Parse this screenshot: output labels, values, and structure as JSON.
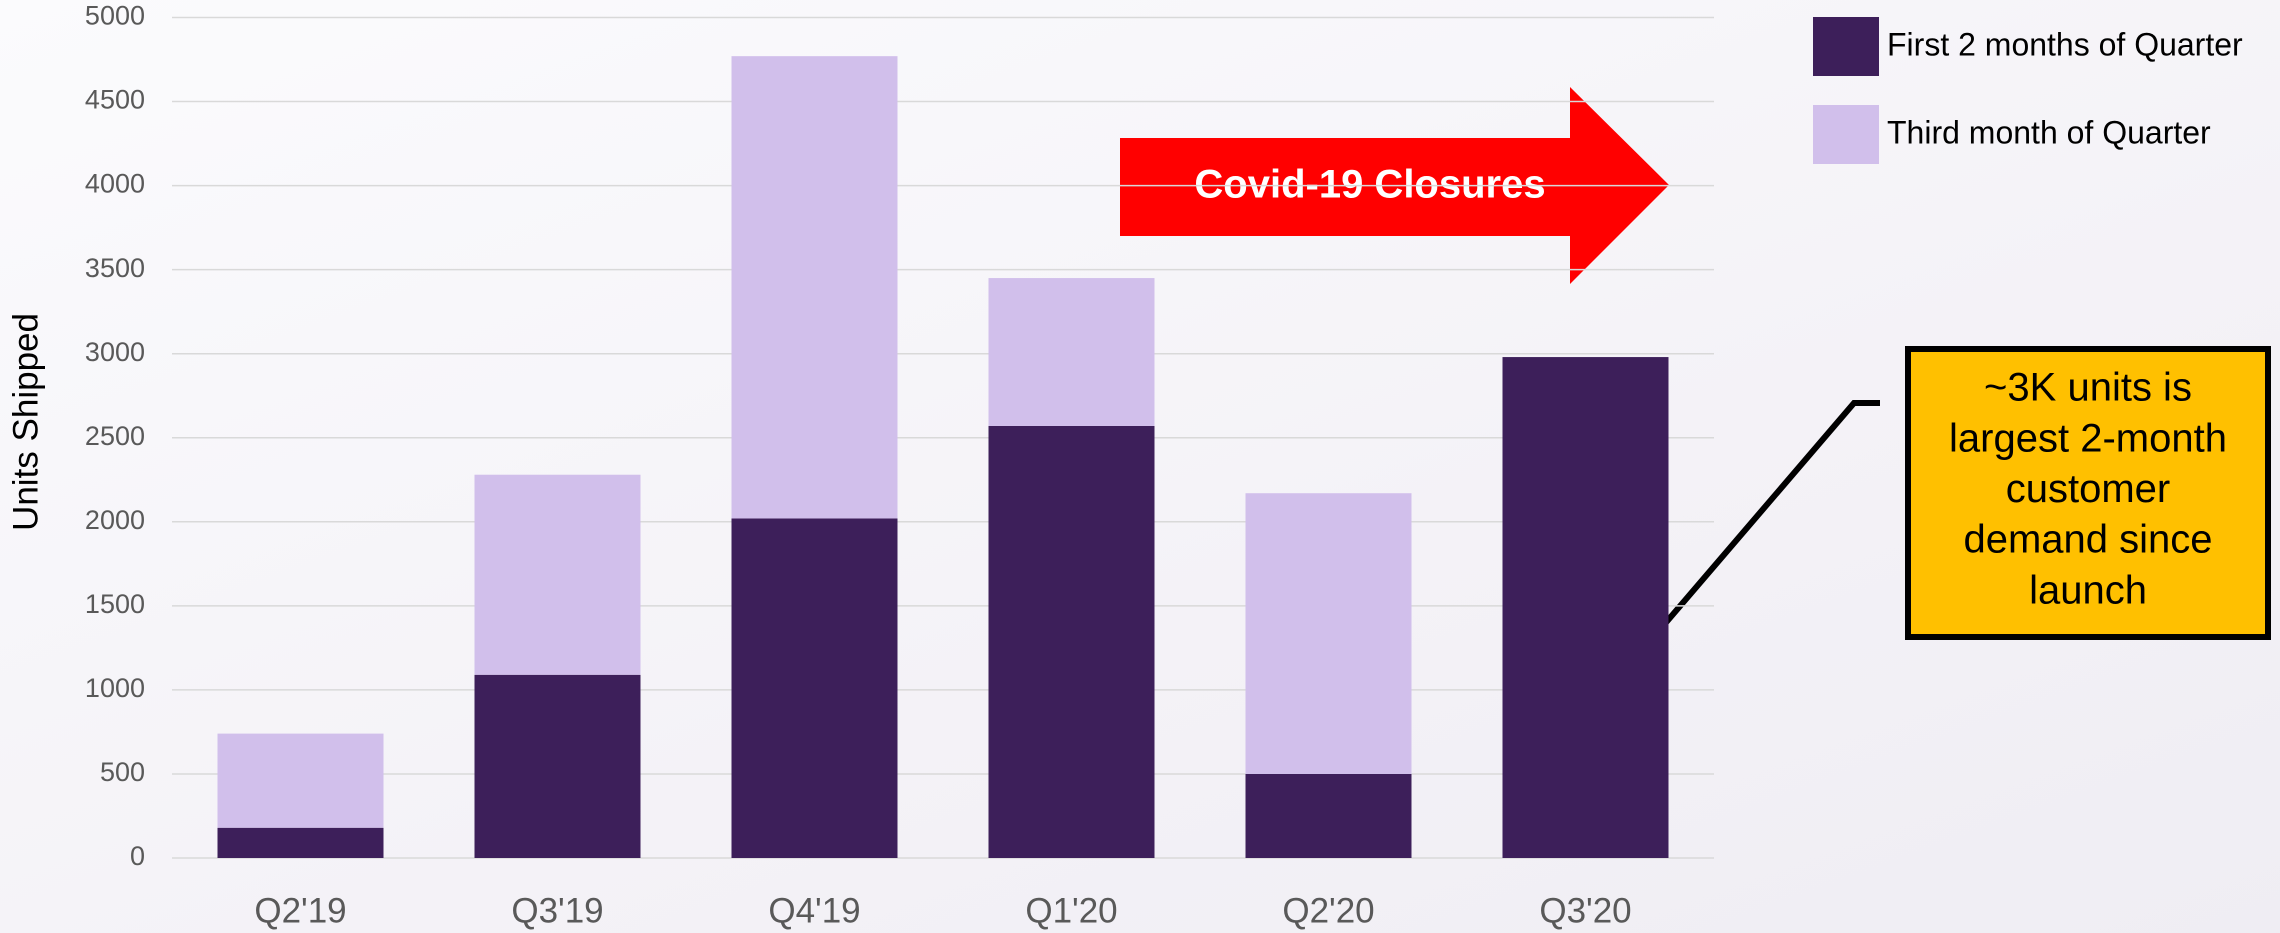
{
  "chart_data": {
    "type": "stacked_bar",
    "ylabel": "Units Shipped",
    "categories": [
      "Q2'19",
      "Q3'19",
      "Q4'19",
      "Q1'20",
      "Q2'20",
      "Q3'20"
    ],
    "series": [
      {
        "name": "First 2 months of Quarter",
        "color": "#3d1f5a",
        "values": [
          180,
          1090,
          2020,
          2570,
          500,
          2980
        ]
      },
      {
        "name": "Third month of Quarter",
        "color": "#d1bfeb",
        "values": [
          560,
          1190,
          2750,
          880,
          1670,
          null
        ]
      }
    ],
    "ylim": [
      0,
      5000
    ],
    "yticks": [
      0,
      500,
      1000,
      1500,
      2000,
      2500,
      3000,
      3500,
      4000,
      4500,
      5000
    ],
    "grid": true,
    "legend": "top-right",
    "arrow_label": "Covid-19 Closures",
    "annotation_lines": [
      "~3K units is",
      "largest 2-month",
      "customer",
      "demand since",
      "launch"
    ]
  }
}
